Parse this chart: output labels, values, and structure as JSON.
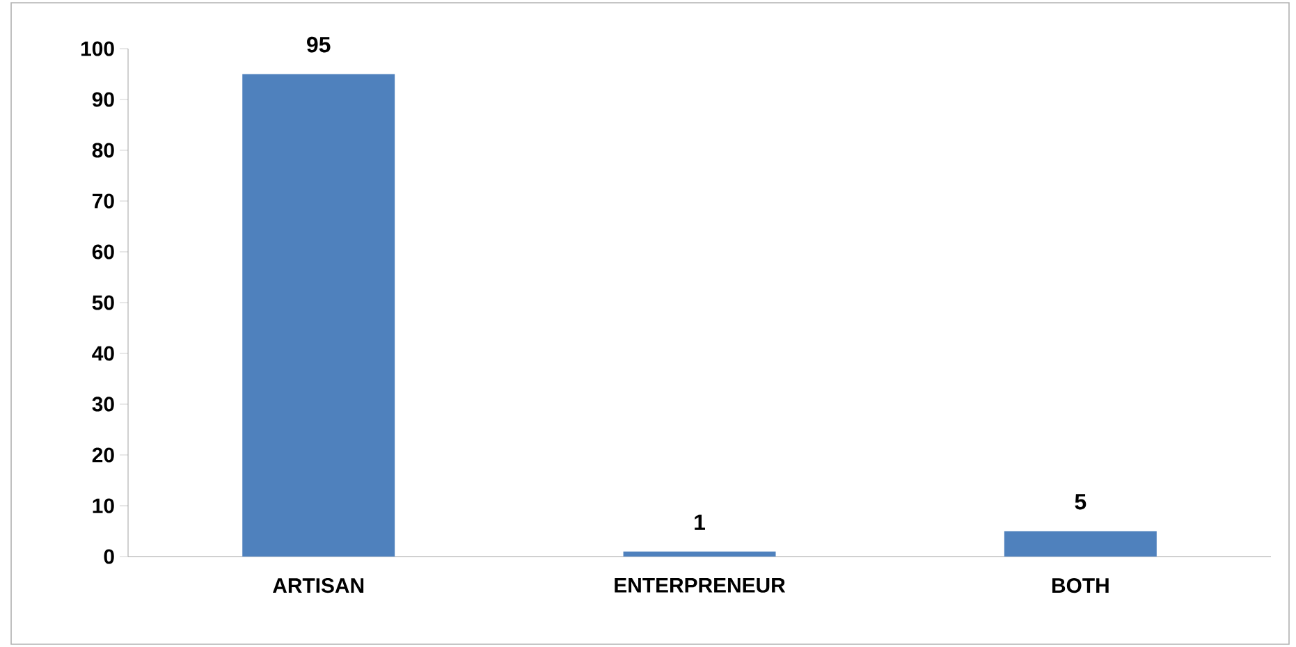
{
  "chart_data": {
    "type": "bar",
    "categories": [
      "ARTISAN",
      "ENTERPRENEUR",
      "BOTH"
    ],
    "values": [
      95,
      1,
      5
    ],
    "color": "#4f81bd",
    "ylim": [
      0,
      100
    ],
    "yticks": [
      0,
      10,
      20,
      30,
      40,
      50,
      60,
      70,
      80,
      90,
      100
    ],
    "data_labels": true
  }
}
